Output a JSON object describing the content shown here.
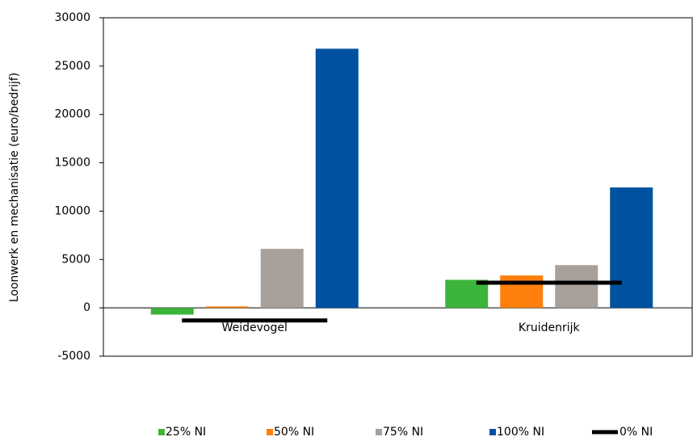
{
  "chart_data": {
    "type": "bar",
    "y_label": "Loonwerk en mechanisatie (euro/bedrijf)",
    "categories": [
      "Weidevogel",
      "Kruidenrijk"
    ],
    "series": [
      {
        "name": "25% NI",
        "color": "#3cb43c",
        "values": [
          -700,
          2900
        ]
      },
      {
        "name": "50% NI",
        "color": "#ff7f0e",
        "values": [
          150,
          3350
        ]
      },
      {
        "name": "75% NI",
        "color": "#a8a09a",
        "values": [
          6100,
          4420
        ]
      },
      {
        "name": "100% NI",
        "color": "#0052a0",
        "values": [
          26800,
          12450
        ]
      },
      {
        "name": "0% NI",
        "color": "#000000",
        "type": "line",
        "values": [
          -1300,
          2600
        ]
      }
    ],
    "ylim": [
      -5000,
      30000
    ],
    "yticks": [
      -5000,
      0,
      5000,
      10000,
      15000,
      20000,
      25000,
      30000
    ]
  }
}
